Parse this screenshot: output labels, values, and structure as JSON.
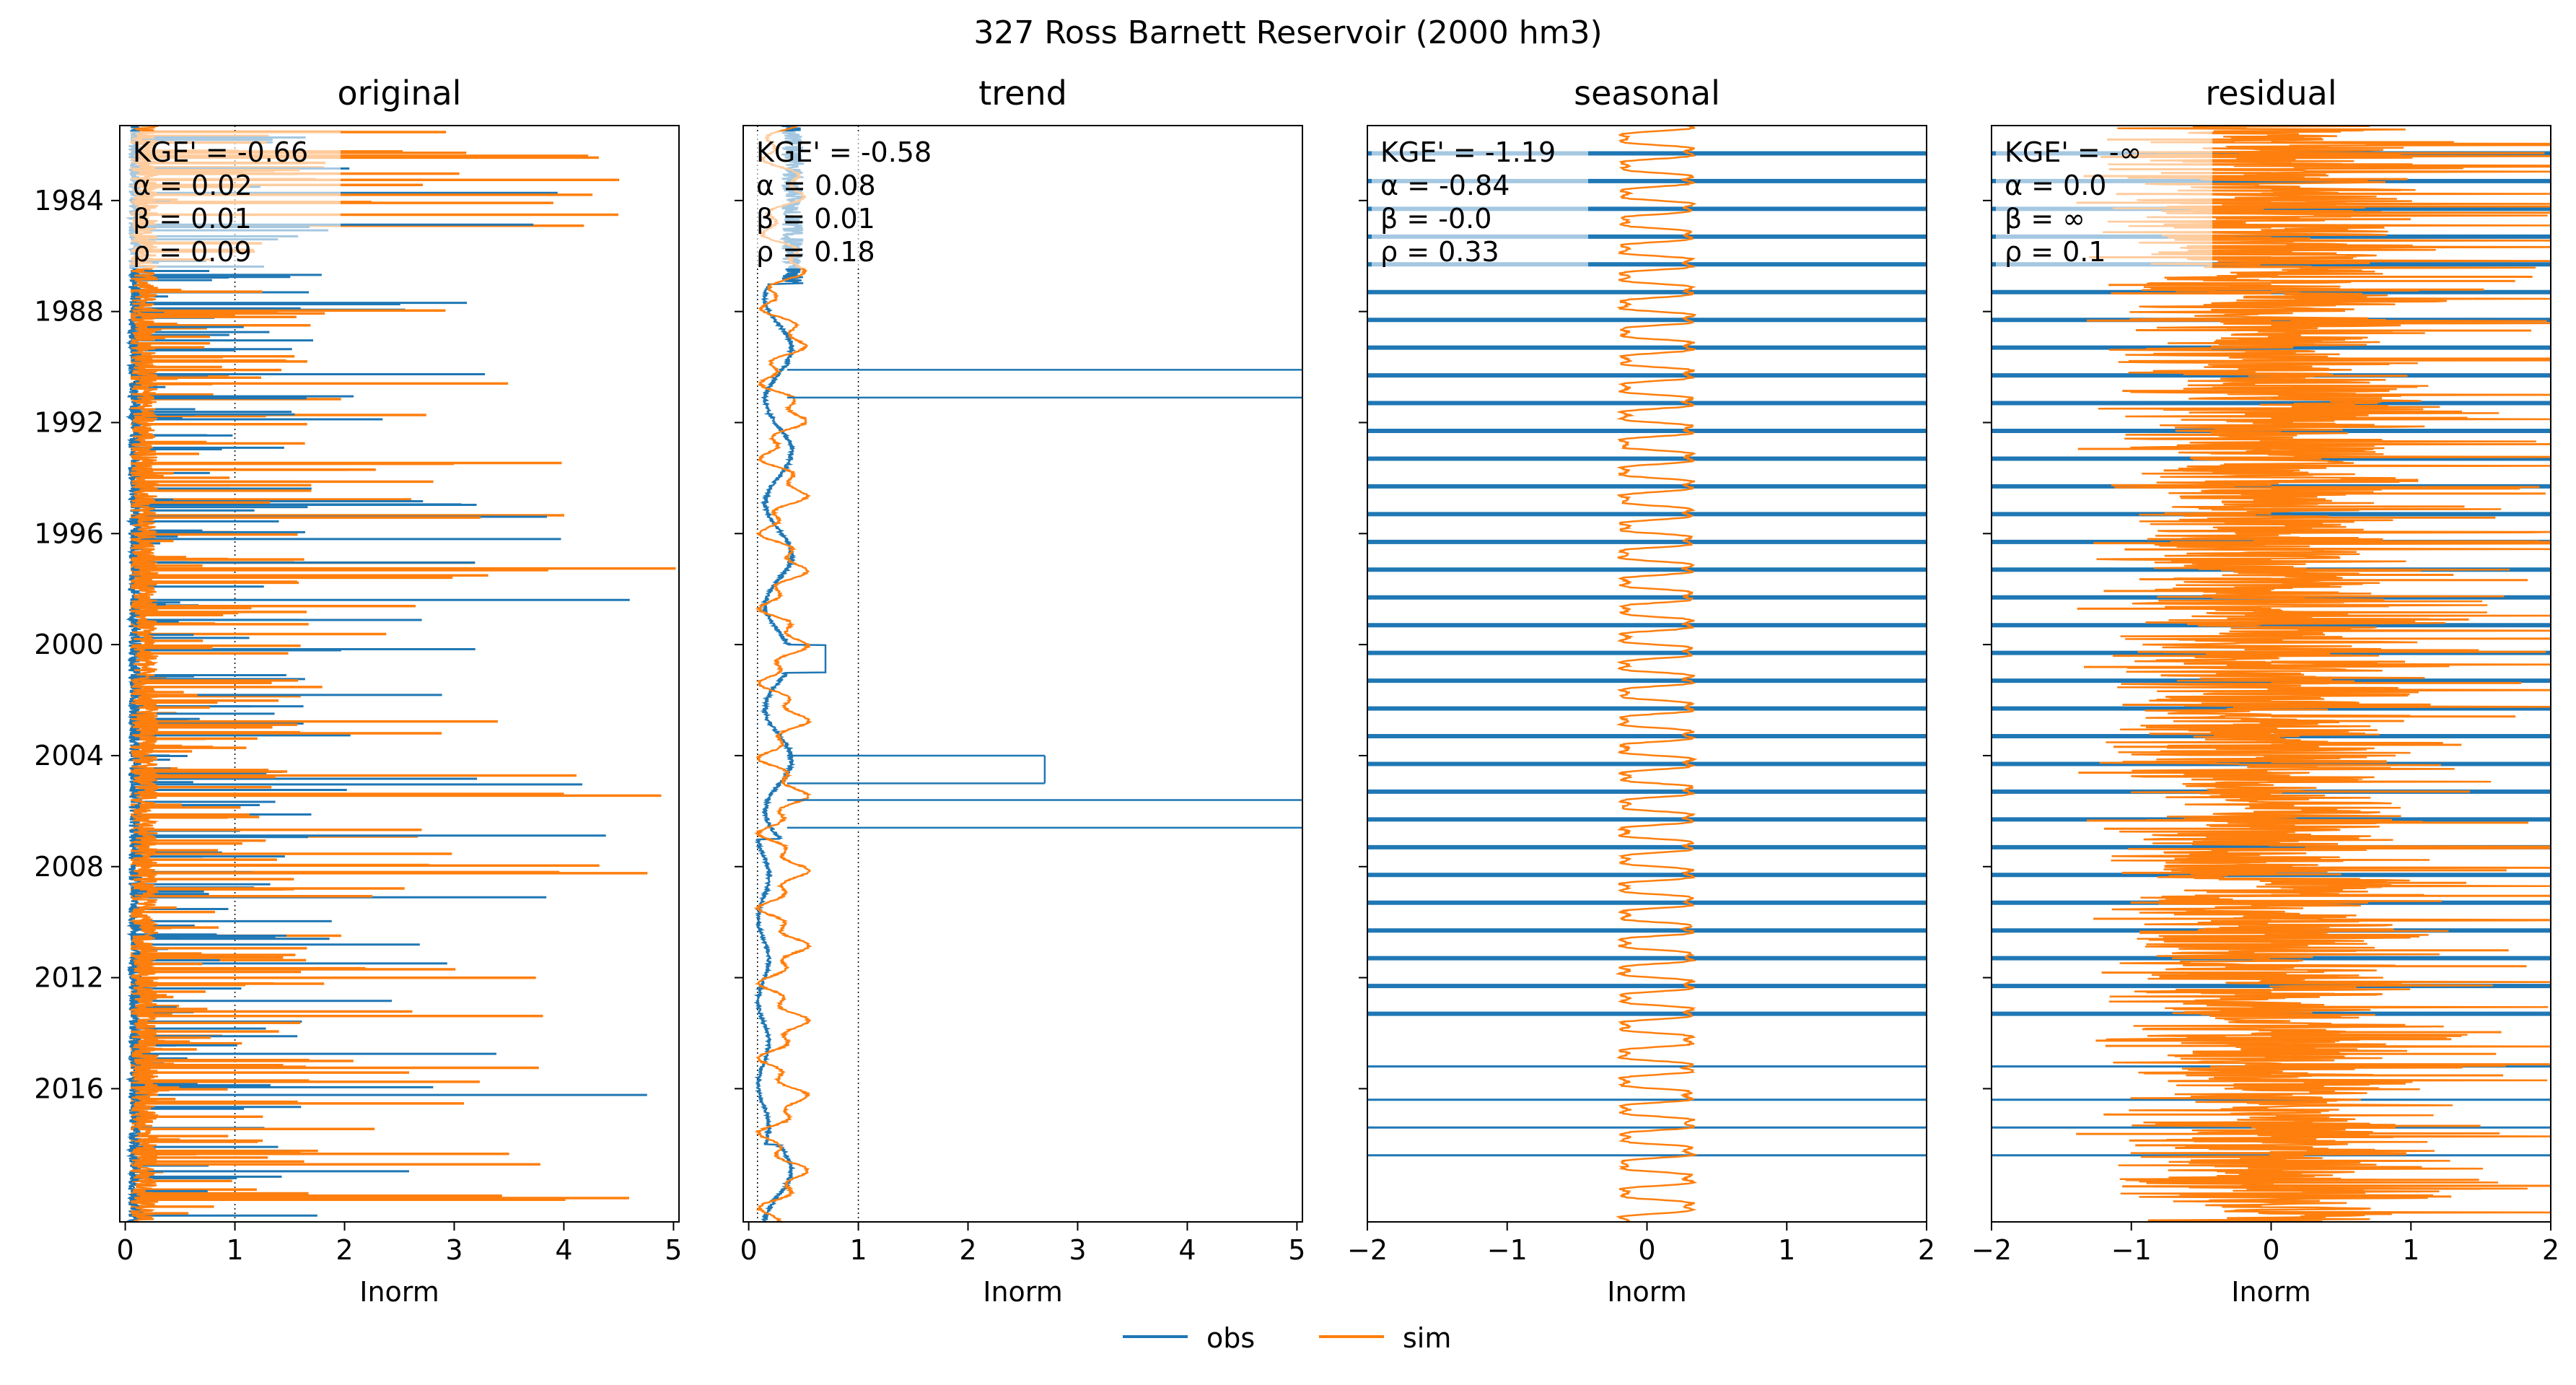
{
  "figure": {
    "suptitle": "327  Ross Barnett Reservoir (2000 hm3)",
    "legend": {
      "placement": "bottom-center",
      "items": [
        {
          "label": "obs",
          "color": "#1f77b4"
        },
        {
          "label": "sim",
          "color": "#ff7f0e"
        }
      ]
    }
  },
  "colors": {
    "obs": "#1f77b4",
    "sim": "#ff7f0e"
  },
  "chart_data": [
    {
      "type": "line",
      "title": "original",
      "xlabel": "Inorm",
      "xlim": [
        -0.05,
        5.05
      ],
      "xticks": [
        0,
        1,
        2,
        3,
        4,
        5
      ],
      "xtick_labels": [
        "0",
        "1",
        "2",
        "3",
        "4",
        "5"
      ],
      "ylim": [
        1981.3,
        2020.8
      ],
      "yticks": [
        1984,
        1988,
        1992,
        1996,
        2000,
        2004,
        2008,
        2012,
        2016
      ],
      "ytick_labels": [
        "1984",
        "1988",
        "1992",
        "1996",
        "2000",
        "2004",
        "2008",
        "2012",
        "2016"
      ],
      "show_ytick_labels": true,
      "ref_lines": [
        0.08,
        1
      ],
      "stats": [
        "KGE' = -0.66",
        "α = 0.02",
        "β = 0.01",
        "ρ = 0.09"
      ],
      "series_style": "original"
    },
    {
      "type": "line",
      "title": "trend",
      "xlabel": "Inorm",
      "xlim": [
        -0.05,
        5.05
      ],
      "xticks": [
        0,
        1,
        2,
        3,
        4,
        5
      ],
      "xtick_labels": [
        "0",
        "1",
        "2",
        "3",
        "4",
        "5"
      ],
      "ylim": [
        1981.3,
        2020.8
      ],
      "yticks": [
        1984,
        1988,
        1992,
        1996,
        2000,
        2004,
        2008,
        2012,
        2016
      ],
      "show_ytick_labels": false,
      "ref_lines": [
        0.08,
        1
      ],
      "stats": [
        "KGE' = -0.58",
        "α = 0.08",
        "β = 0.01",
        "ρ = 0.18"
      ],
      "series_style": "trend"
    },
    {
      "type": "line",
      "title": "seasonal",
      "xlabel": "Inorm",
      "xlim": [
        -2,
        2
      ],
      "xticks": [
        -2,
        -1,
        0,
        1,
        2
      ],
      "xtick_labels": [
        "−2",
        "−1",
        "0",
        "1",
        "2"
      ],
      "ylim": [
        1981.3,
        2020.8
      ],
      "yticks": [
        1984,
        1988,
        1992,
        1996,
        2000,
        2004,
        2008,
        2012,
        2016
      ],
      "show_ytick_labels": false,
      "ref_lines": [],
      "stats": [
        "KGE' = -1.19",
        "α = -0.84",
        "β = -0.0",
        "ρ = 0.33"
      ],
      "series_style": "seasonal"
    },
    {
      "type": "line",
      "title": "residual",
      "xlabel": "Inorm",
      "xlim": [
        -2,
        2
      ],
      "xticks": [
        -2,
        -1,
        0,
        1,
        2
      ],
      "xtick_labels": [
        "−2",
        "−1",
        "0",
        "1",
        "2"
      ],
      "ylim": [
        1981.3,
        2020.8
      ],
      "yticks": [
        1984,
        1988,
        1992,
        1996,
        2000,
        2004,
        2008,
        2012,
        2016
      ],
      "show_ytick_labels": false,
      "ref_lines": [],
      "stats": [
        "KGE' = -∞",
        "α = 0.0",
        "β = ∞",
        "ρ = 0.1"
      ],
      "series_style": "residual"
    }
  ]
}
